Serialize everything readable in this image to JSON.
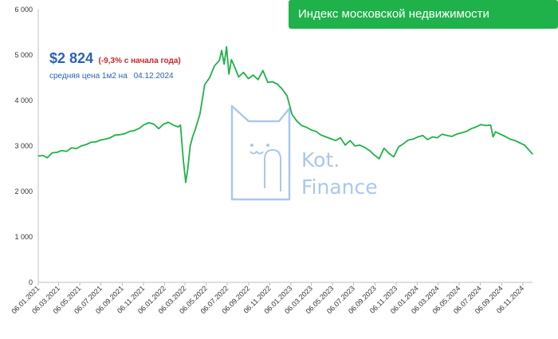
{
  "header": {
    "title": "Индекс московской недвижимости",
    "banner_color": "#1fb14a"
  },
  "summary": {
    "price": "$2 824",
    "change": "(-9,3% с начала года)",
    "caption": "средняя цена 1м2 на",
    "date": "04.12.2024"
  },
  "watermark": {
    "brand": "Kot.",
    "brand2": "Finance",
    "icon": "cat-paperclip-logo"
  },
  "chart_data": {
    "type": "line",
    "title": "Индекс московской недвижимости",
    "xlabel": "",
    "ylabel": "",
    "ylim": [
      0,
      6000
    ],
    "yticks": [
      0,
      1000,
      2000,
      3000,
      4000,
      5000,
      6000
    ],
    "ytick_labels": [
      "0",
      "1 000",
      "2 000",
      "3 000",
      "4 000",
      "5 000",
      "6 000"
    ],
    "xlim": [
      "2021-01-06",
      "2024-12-04"
    ],
    "xtick_labels": [
      "06.01.2021",
      "06.03.2021",
      "06.05.2021",
      "06.07.2021",
      "06.09.2021",
      "06.11.2021",
      "06.01.2022",
      "06.03.2022",
      "06.05.2022",
      "06.07.2022",
      "06.09.2022",
      "06.11.2022",
      "06.01.2023",
      "06.03.2023",
      "06.05.2023",
      "06.07.2023",
      "06.09.2023",
      "06.11.2023",
      "06.01.2024",
      "06.03.2024",
      "06.05.2024",
      "06.07.2024",
      "06.09.2024",
      "06.11.2024"
    ],
    "grid": false,
    "line_color": "#1fb14a",
    "series": [
      {
        "points": [
          [
            "2021-01-06",
            2780
          ],
          [
            "2021-01-20",
            2790
          ],
          [
            "2021-02-01",
            2740
          ],
          [
            "2021-02-15",
            2850
          ],
          [
            "2021-03-01",
            2860
          ],
          [
            "2021-03-15",
            2900
          ],
          [
            "2021-03-29",
            2880
          ],
          [
            "2021-04-12",
            2960
          ],
          [
            "2021-04-26",
            2940
          ],
          [
            "2021-05-10",
            3000
          ],
          [
            "2021-05-24",
            3030
          ],
          [
            "2021-06-07",
            3080
          ],
          [
            "2021-06-21",
            3090
          ],
          [
            "2021-07-05",
            3130
          ],
          [
            "2021-07-19",
            3150
          ],
          [
            "2021-08-02",
            3180
          ],
          [
            "2021-08-16",
            3240
          ],
          [
            "2021-08-30",
            3250
          ],
          [
            "2021-09-13",
            3270
          ],
          [
            "2021-09-27",
            3320
          ],
          [
            "2021-10-11",
            3340
          ],
          [
            "2021-10-25",
            3390
          ],
          [
            "2021-11-08",
            3470
          ],
          [
            "2021-11-22",
            3510
          ],
          [
            "2021-12-06",
            3480
          ],
          [
            "2021-12-20",
            3380
          ],
          [
            "2022-01-03",
            3480
          ],
          [
            "2022-01-17",
            3520
          ],
          [
            "2022-01-31",
            3460
          ],
          [
            "2022-02-14",
            3420
          ],
          [
            "2022-02-21",
            3460
          ],
          [
            "2022-03-01",
            2700
          ],
          [
            "2022-03-08",
            2200
          ],
          [
            "2022-03-14",
            2500
          ],
          [
            "2022-03-21",
            3000
          ],
          [
            "2022-03-28",
            3200
          ],
          [
            "2022-04-04",
            3350
          ],
          [
            "2022-04-18",
            3700
          ],
          [
            "2022-05-02",
            4350
          ],
          [
            "2022-05-16",
            4500
          ],
          [
            "2022-05-30",
            4760
          ],
          [
            "2022-06-13",
            4880
          ],
          [
            "2022-06-20",
            5100
          ],
          [
            "2022-06-27",
            4800
          ],
          [
            "2022-07-04",
            5180
          ],
          [
            "2022-07-11",
            4580
          ],
          [
            "2022-07-18",
            4900
          ],
          [
            "2022-07-25",
            4780
          ],
          [
            "2022-08-08",
            4520
          ],
          [
            "2022-08-22",
            4620
          ],
          [
            "2022-09-05",
            4480
          ],
          [
            "2022-09-19",
            4560
          ],
          [
            "2022-10-03",
            4460
          ],
          [
            "2022-10-17",
            4660
          ],
          [
            "2022-10-31",
            4400
          ],
          [
            "2022-11-14",
            4410
          ],
          [
            "2022-11-28",
            4360
          ],
          [
            "2022-12-12",
            4250
          ],
          [
            "2022-12-26",
            4100
          ],
          [
            "2023-01-09",
            3700
          ],
          [
            "2023-01-23",
            3550
          ],
          [
            "2023-02-06",
            3450
          ],
          [
            "2023-02-20",
            3410
          ],
          [
            "2023-03-06",
            3350
          ],
          [
            "2023-03-20",
            3320
          ],
          [
            "2023-04-03",
            3240
          ],
          [
            "2023-04-17",
            3200
          ],
          [
            "2023-05-01",
            3160
          ],
          [
            "2023-05-15",
            3120
          ],
          [
            "2023-05-29",
            3180
          ],
          [
            "2023-06-12",
            3020
          ],
          [
            "2023-06-26",
            3120
          ],
          [
            "2023-07-10",
            3000
          ],
          [
            "2023-07-24",
            3020
          ],
          [
            "2023-08-07",
            2970
          ],
          [
            "2023-08-21",
            2900
          ],
          [
            "2023-09-04",
            2800
          ],
          [
            "2023-09-18",
            2720
          ],
          [
            "2023-10-02",
            2950
          ],
          [
            "2023-10-16",
            2840
          ],
          [
            "2023-10-30",
            2760
          ],
          [
            "2023-11-13",
            2980
          ],
          [
            "2023-11-27",
            3050
          ],
          [
            "2023-12-11",
            3130
          ],
          [
            "2023-12-25",
            3150
          ],
          [
            "2024-01-08",
            3200
          ],
          [
            "2024-01-22",
            3230
          ],
          [
            "2024-02-05",
            3140
          ],
          [
            "2024-02-19",
            3200
          ],
          [
            "2024-03-04",
            3180
          ],
          [
            "2024-03-18",
            3260
          ],
          [
            "2024-04-01",
            3230
          ],
          [
            "2024-04-15",
            3210
          ],
          [
            "2024-04-29",
            3260
          ],
          [
            "2024-05-13",
            3290
          ],
          [
            "2024-05-27",
            3320
          ],
          [
            "2024-06-10",
            3380
          ],
          [
            "2024-06-24",
            3420
          ],
          [
            "2024-07-08",
            3470
          ],
          [
            "2024-07-22",
            3450
          ],
          [
            "2024-08-05",
            3460
          ],
          [
            "2024-08-12",
            3200
          ],
          [
            "2024-08-19",
            3310
          ],
          [
            "2024-09-02",
            3260
          ],
          [
            "2024-09-16",
            3210
          ],
          [
            "2024-09-30",
            3150
          ],
          [
            "2024-10-14",
            3120
          ],
          [
            "2024-10-28",
            3070
          ],
          [
            "2024-11-11",
            3020
          ],
          [
            "2024-11-25",
            2900
          ],
          [
            "2024-12-04",
            2824
          ]
        ]
      }
    ]
  }
}
